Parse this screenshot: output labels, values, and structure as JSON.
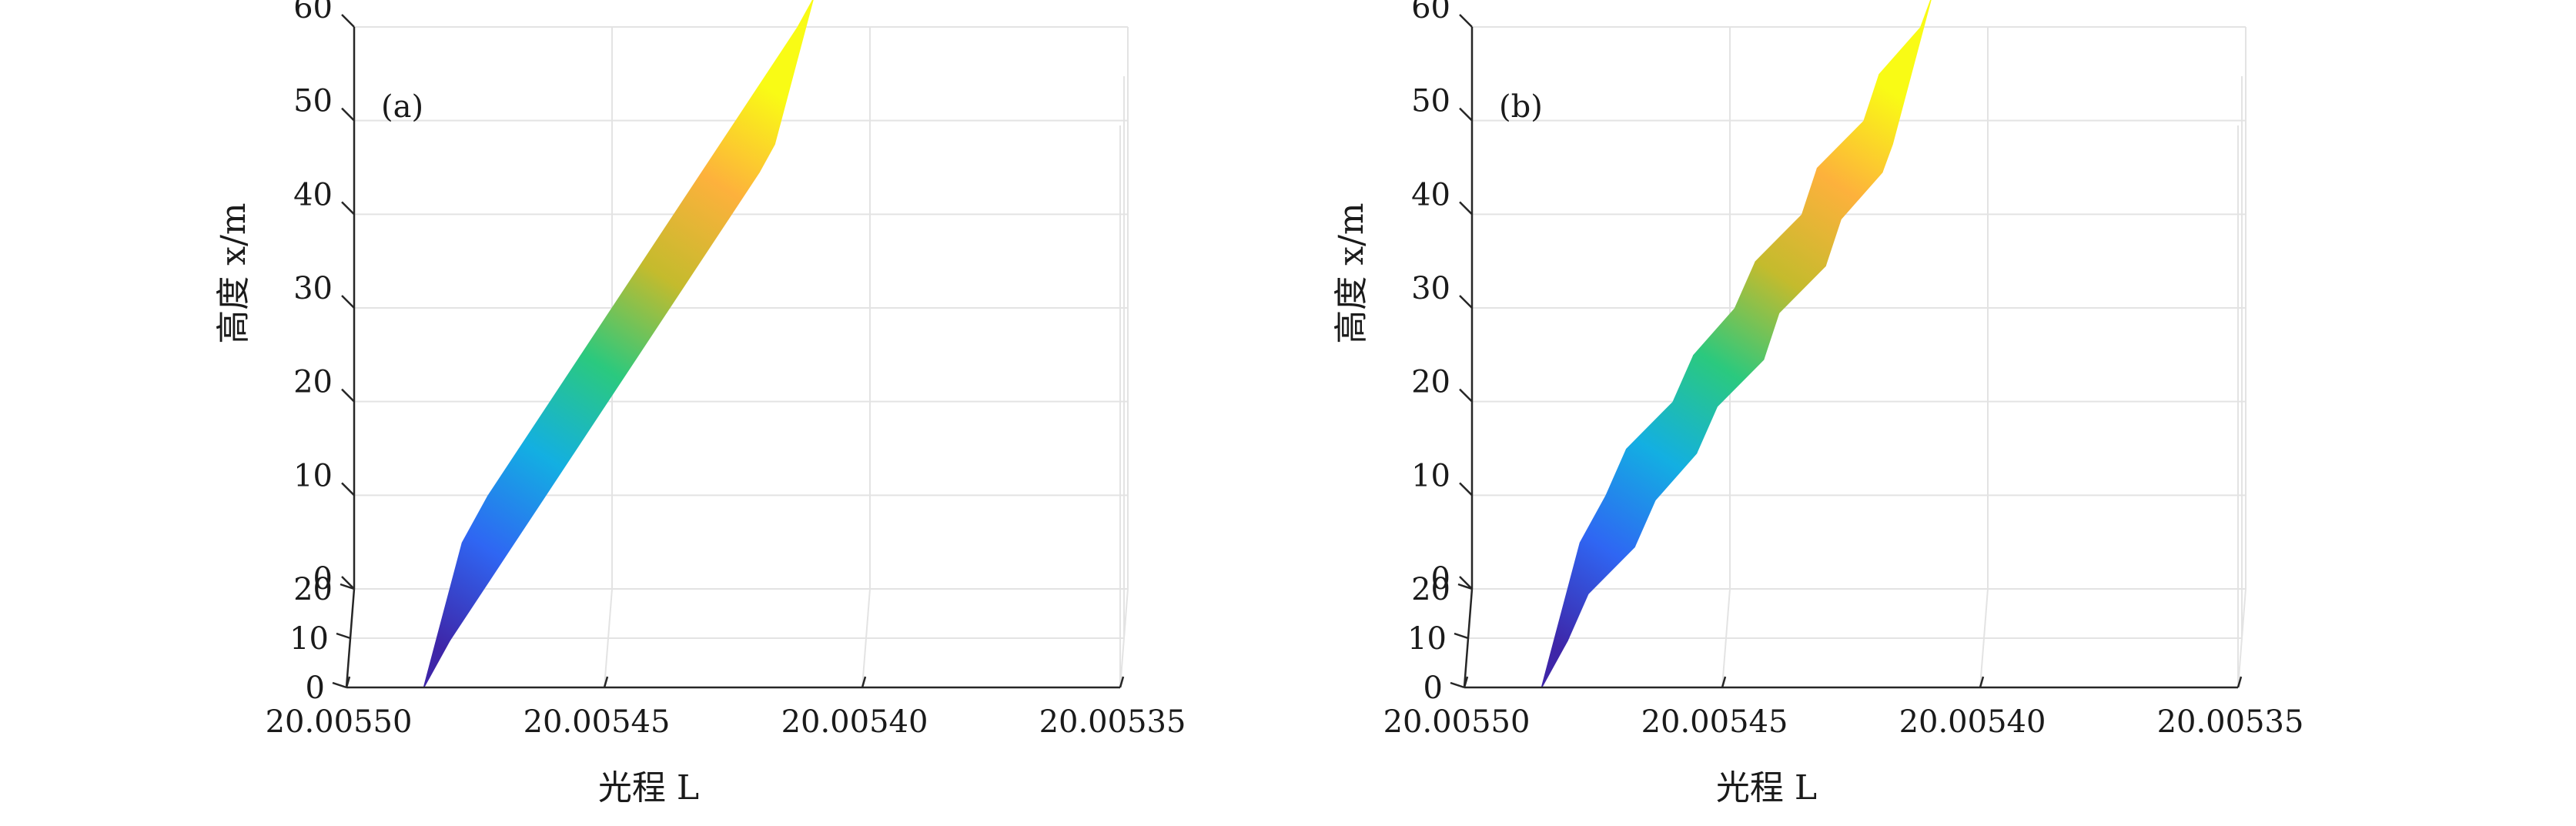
{
  "chart_data": [
    {
      "type": "surface",
      "panel_label": "(a)",
      "xlabel": "光程 L",
      "ylabel": "高度 x/m",
      "x_ticks": [
        "20.00550",
        "20.00545",
        "20.00540",
        "20.00535"
      ],
      "y_ticks": [
        "0",
        "10",
        "20"
      ],
      "z_ticks": [
        "0",
        "10",
        "20",
        "30",
        "40",
        "50",
        "60"
      ],
      "xlim": [
        20.00535,
        20.0055
      ],
      "ylim": [
        0,
        20
      ],
      "zlim": [
        0,
        60
      ],
      "grid": true,
      "colormap": [
        "#3e26a8",
        "#2f66f3",
        "#13afe2",
        "#2bc97e",
        "#c4bb2d",
        "#fdb13c",
        "#f9fb15"
      ],
      "surface": {
        "z": [
          0,
          5,
          10,
          15,
          20,
          25,
          30,
          35,
          40,
          45,
          50,
          55,
          58
        ],
        "L": [
          20.005485,
          20.00548,
          20.005474,
          20.005468,
          20.005462,
          20.005456,
          20.00545,
          20.005444,
          20.005438,
          20.005432,
          20.005426,
          20.00542,
          20.005417
        ],
        "width": 20
      }
    },
    {
      "type": "surface",
      "panel_label": "(b)",
      "xlabel": "光程 L",
      "ylabel": "高度 x/m",
      "x_ticks": [
        "20.00550",
        "20.00545",
        "20.00540",
        "20.00535"
      ],
      "y_ticks": [
        "0",
        "10",
        "20"
      ],
      "z_ticks": [
        "0",
        "10",
        "20",
        "30",
        "40",
        "50",
        "60"
      ],
      "xlim": [
        20.00535,
        20.0055
      ],
      "ylim": [
        0,
        20
      ],
      "zlim": [
        0,
        60
      ],
      "grid": true,
      "colormap": [
        "#3e26a8",
        "#2f66f3",
        "#13afe2",
        "#2bc97e",
        "#c4bb2d",
        "#fdb13c",
        "#f9fb15"
      ],
      "surface": {
        "z": [
          0,
          5,
          10,
          15,
          20,
          25,
          30,
          35,
          40,
          45,
          50,
          55,
          58
        ],
        "L": [
          20.005485,
          20.00548,
          20.005476,
          20.005467,
          20.005463,
          20.005455,
          20.005451,
          20.005442,
          20.005439,
          20.00543,
          20.005427,
          20.005419,
          20.005417
        ],
        "width": 20
      }
    }
  ]
}
